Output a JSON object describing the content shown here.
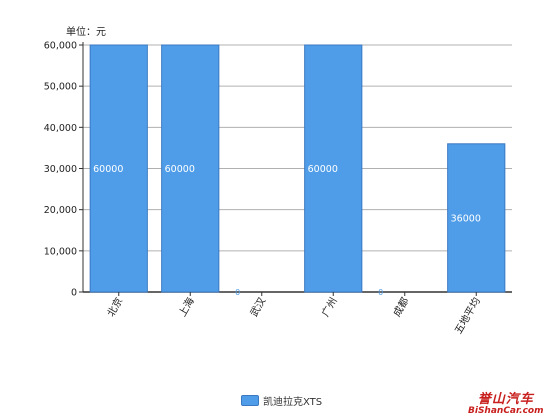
{
  "unit_label": "单位：元",
  "legend": {
    "label": "凯迪拉克XTS",
    "color": "#4f9de8"
  },
  "watermark": {
    "title": "誉山汽车",
    "subtitle": "BiShanCar.com"
  },
  "chart_data": {
    "type": "bar",
    "categories": [
      "北京",
      "上海",
      "武汉",
      "广州",
      "成都",
      "五地平均"
    ],
    "series": [
      {
        "name": "凯迪拉克XTS",
        "values": [
          60000,
          60000,
          0,
          60000,
          0,
          36000
        ]
      }
    ],
    "data_labels": [
      "60000",
      "60000",
      "0",
      "60000",
      "0",
      "36000"
    ],
    "y_ticks": [
      0,
      10000,
      20000,
      30000,
      40000,
      50000,
      60000
    ],
    "y_tick_labels": [
      "0",
      "10,000",
      "20,000",
      "30,000",
      "40,000",
      "50,000",
      "60,000"
    ],
    "ylim": [
      0,
      60000
    ],
    "grid": true,
    "legend_position": "bottom",
    "bar_color": "#4f9de8"
  }
}
